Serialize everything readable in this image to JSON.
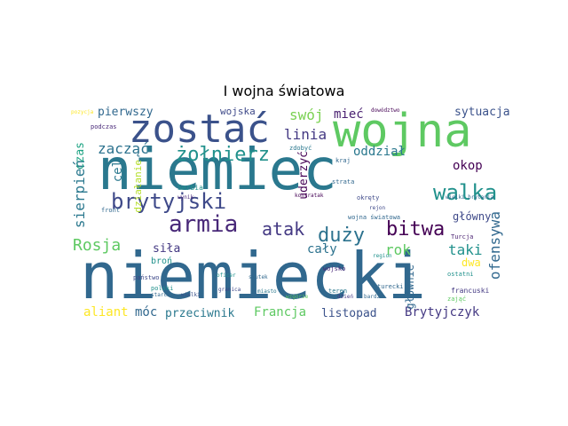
{
  "title": "I wojna światowa",
  "words": [
    {
      "text": "niemiec",
      "color": "#2a788e"
    },
    {
      "text": "niemiecki",
      "color": "#31688e"
    },
    {
      "text": "wojna",
      "color": "#5ec962"
    },
    {
      "text": "zostać",
      "color": "#3b528b"
    },
    {
      "text": "żołnierz",
      "color": "#21918c"
    },
    {
      "text": "brytyjski",
      "color": "#3e4989"
    },
    {
      "text": "armia",
      "color": "#482878"
    },
    {
      "text": "duży",
      "color": "#2c728e"
    },
    {
      "text": "bitwa",
      "color": "#440154"
    },
    {
      "text": "walka",
      "color": "#21918c"
    },
    {
      "text": "atak",
      "color": "#443983"
    },
    {
      "text": "Rosja",
      "color": "#5ec962"
    },
    {
      "text": "zacząć",
      "color": "#2c728e"
    },
    {
      "text": "sierpień",
      "color": "#2a788e"
    },
    {
      "text": "czas",
      "color": "#21a585"
    },
    {
      "text": "pierwszy",
      "color": "#31688e"
    },
    {
      "text": "linia",
      "color": "#443983"
    },
    {
      "text": "swój",
      "color": "#7ad151"
    },
    {
      "text": "mieć",
      "color": "#481f70"
    },
    {
      "text": "sytuacja",
      "color": "#3b528b"
    },
    {
      "text": "oddział",
      "color": "#2a788e"
    },
    {
      "text": "okop",
      "color": "#440154"
    },
    {
      "text": "ofensywa",
      "color": "#31688e"
    },
    {
      "text": "główny",
      "color": "#3e4989"
    },
    {
      "text": "taki",
      "color": "#21918c"
    },
    {
      "text": "rok",
      "color": "#5ec962"
    },
    {
      "text": "cały",
      "color": "#2c728e"
    },
    {
      "text": "siła",
      "color": "#443983"
    },
    {
      "text": "cel",
      "color": "#2a788e"
    },
    {
      "text": "aliant",
      "color": "#fde725"
    },
    {
      "text": "móc",
      "color": "#31688e"
    },
    {
      "text": "przeciwnik",
      "color": "#2a788e"
    },
    {
      "text": "Francja",
      "color": "#5ec962"
    },
    {
      "text": "listopad",
      "color": "#3b528b"
    },
    {
      "text": "Brytyjczyk",
      "color": "#443983"
    },
    {
      "text": "głównie",
      "color": "#31688e"
    },
    {
      "text": "dwa",
      "color": "#fde725"
    },
    {
      "text": "wojska",
      "color": "#3e4989"
    },
    {
      "text": "uderzyć",
      "color": "#440154"
    },
    {
      "text": "działanie",
      "color": "#b5de2b"
    },
    {
      "text": "wojna światowa",
      "color": "#31688e"
    },
    {
      "text": "broń",
      "color": "#21918c"
    },
    {
      "text": "państwo",
      "color": "#3e4989"
    },
    {
      "text": "Serbia",
      "color": "#21918c"
    },
    {
      "text": "teren",
      "color": "#2a788e"
    },
    {
      "text": "turecki",
      "color": "#31688e"
    },
    {
      "text": "francuski",
      "color": "#443983"
    },
    {
      "text": "Turcja",
      "color": "#481f70"
    },
    {
      "text": "strata",
      "color": "#31688e"
    },
    {
      "text": "dowództwo",
      "color": "#440154"
    },
    {
      "text": "podczas",
      "color": "#482878"
    },
    {
      "text": "zdobyć",
      "color": "#2a788e"
    },
    {
      "text": "kraj",
      "color": "#31688e"
    },
    {
      "text": "front",
      "color": "#31688e"
    },
    {
      "text": "wojsko",
      "color": "#482878"
    },
    {
      "text": "okręty",
      "color": "#3e4989"
    },
    {
      "text": "polski",
      "color": "#21918c"
    },
    {
      "text": "ostatni",
      "color": "#21918c"
    },
    {
      "text": "zająć",
      "color": "#5ec962"
    },
    {
      "text": "wielki brytania",
      "color": "#31688e"
    },
    {
      "text": "wynik",
      "color": "#482878"
    },
    {
      "text": "pozycja",
      "color": "#fde725"
    },
    {
      "text": "starcie",
      "color": "#31688e"
    },
    {
      "text": "wielki",
      "color": "#3b528b"
    },
    {
      "text": "oficer",
      "color": "#21918c"
    },
    {
      "text": "granica",
      "color": "#3e4989"
    },
    {
      "text": "kontratak",
      "color": "#440154"
    },
    {
      "text": "miasto",
      "color": "#2a788e"
    },
    {
      "text": "skutek",
      "color": "#31688e"
    },
    {
      "text": "dzień",
      "color": "#443983"
    },
    {
      "text": "wzgórze",
      "color": "#5ec962"
    },
    {
      "text": "bardzo",
      "color": "#31688e"
    },
    {
      "text": "region",
      "color": "#21918c"
    },
    {
      "text": "rejon",
      "color": "#3e4989"
    }
  ]
}
